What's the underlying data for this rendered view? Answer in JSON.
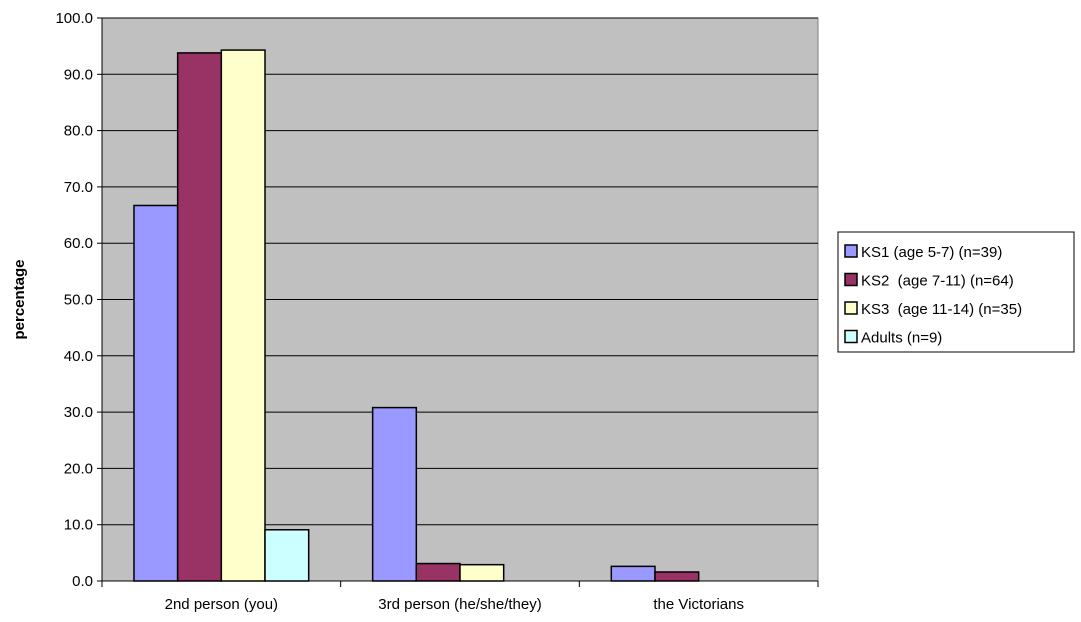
{
  "chart_data": {
    "type": "bar",
    "title": "",
    "xlabel": "",
    "ylabel": "percentage",
    "ylim": [
      0,
      100
    ],
    "ytick_step": 10,
    "ytick_labels": [
      "0.0",
      "10.0",
      "20.0",
      "30.0",
      "40.0",
      "50.0",
      "60.0",
      "70.0",
      "80.0",
      "90.0",
      "100.0"
    ],
    "grid": true,
    "legend_position": "right",
    "plot_background": "#c0c0c0",
    "categories": [
      "2nd person (you)",
      "3rd person (he/she/they)",
      "the Victorians"
    ],
    "series": [
      {
        "name": "KS1 (age 5-7) (n=39)",
        "color": "#9999ff",
        "values": [
          66.7,
          30.8,
          2.6
        ]
      },
      {
        "name": "KS2  (age 7-11) (n=64)",
        "color": "#993366",
        "values": [
          93.8,
          3.1,
          1.6
        ]
      },
      {
        "name": "KS3  (age 11-14) (n=35)",
        "color": "#ffffcc",
        "values": [
          94.3,
          2.9,
          0.0
        ]
      },
      {
        "name": "Adults (n=9)",
        "color": "#ccffff",
        "values": [
          9.1,
          0.0,
          0.0
        ]
      }
    ]
  }
}
